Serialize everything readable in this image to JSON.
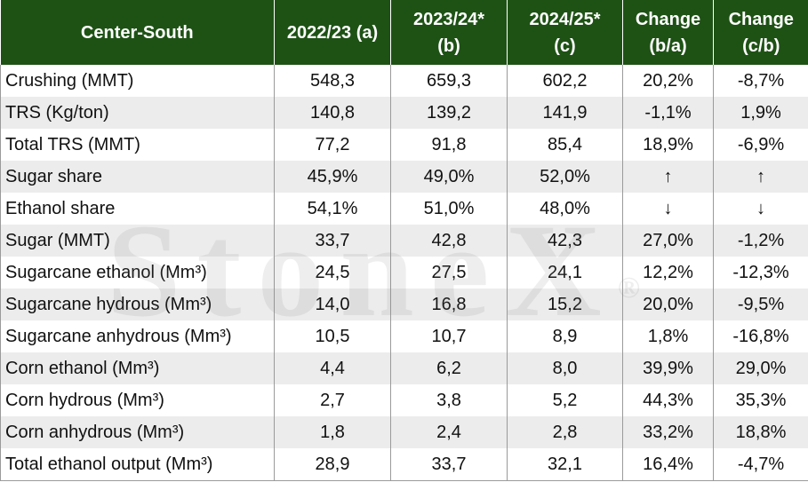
{
  "table": {
    "headers": [
      {
        "line1": "Center-South",
        "line2": ""
      },
      {
        "line1": "2022/23 (a)",
        "line2": ""
      },
      {
        "line1": "2023/24*",
        "line2": "(b)"
      },
      {
        "line1": "2024/25*",
        "line2": "(c)"
      },
      {
        "line1": "Change",
        "line2": "(b/a)"
      },
      {
        "line1": "Change",
        "line2": "(c/b)"
      }
    ],
    "rows": [
      [
        "Crushing (MMT)",
        "548,3",
        "659,3",
        "602,2",
        "20,2%",
        "-8,7%"
      ],
      [
        "TRS (Kg/ton)",
        "140,8",
        "139,2",
        "141,9",
        "-1,1%",
        "1,9%"
      ],
      [
        "Total TRS (MMT)",
        "77,2",
        "91,8",
        "85,4",
        "18,9%",
        "-6,9%"
      ],
      [
        "Sugar share",
        "45,9%",
        "49,0%",
        "52,0%",
        "↑",
        "↑"
      ],
      [
        "Ethanol share",
        "54,1%",
        "51,0%",
        "48,0%",
        "↓",
        "↓"
      ],
      [
        "Sugar (MMT)",
        "33,7",
        "42,8",
        "42,3",
        "27,0%",
        "-1,2%"
      ],
      [
        "Sugarcane ethanol (Mm³)",
        "24,5",
        "27,5",
        "24,1",
        "12,2%",
        "-12,3%"
      ],
      [
        "Sugarcane hydrous (Mm³)",
        "14,0",
        "16,8",
        "15,2",
        "20,0%",
        "-9,5%"
      ],
      [
        "Sugarcane anhydrous (Mm³)",
        "10,5",
        "10,7",
        "8,9",
        "1,8%",
        "-16,8%"
      ],
      [
        "Corn ethanol (Mm³)",
        "4,4",
        "6,2",
        "8,0",
        "39,9%",
        "29,0%"
      ],
      [
        "Corn hydrous (Mm³)",
        "2,7",
        "3,8",
        "5,2",
        "44,3%",
        "35,3%"
      ],
      [
        "Corn anhydrous (Mm³)",
        "1,8",
        "2,4",
        "2,8",
        "33,2%",
        "18,8%"
      ],
      [
        "Total ethanol output (Mm³)",
        "28,9",
        "33,7",
        "32,1",
        "16,4%",
        "-4,7%"
      ]
    ]
  },
  "watermark": {
    "text": "StoneX",
    "mark": "®"
  },
  "colors": {
    "header_bg": "#1e5215",
    "header_text": "#ffffff",
    "stripe": "#ececec"
  }
}
